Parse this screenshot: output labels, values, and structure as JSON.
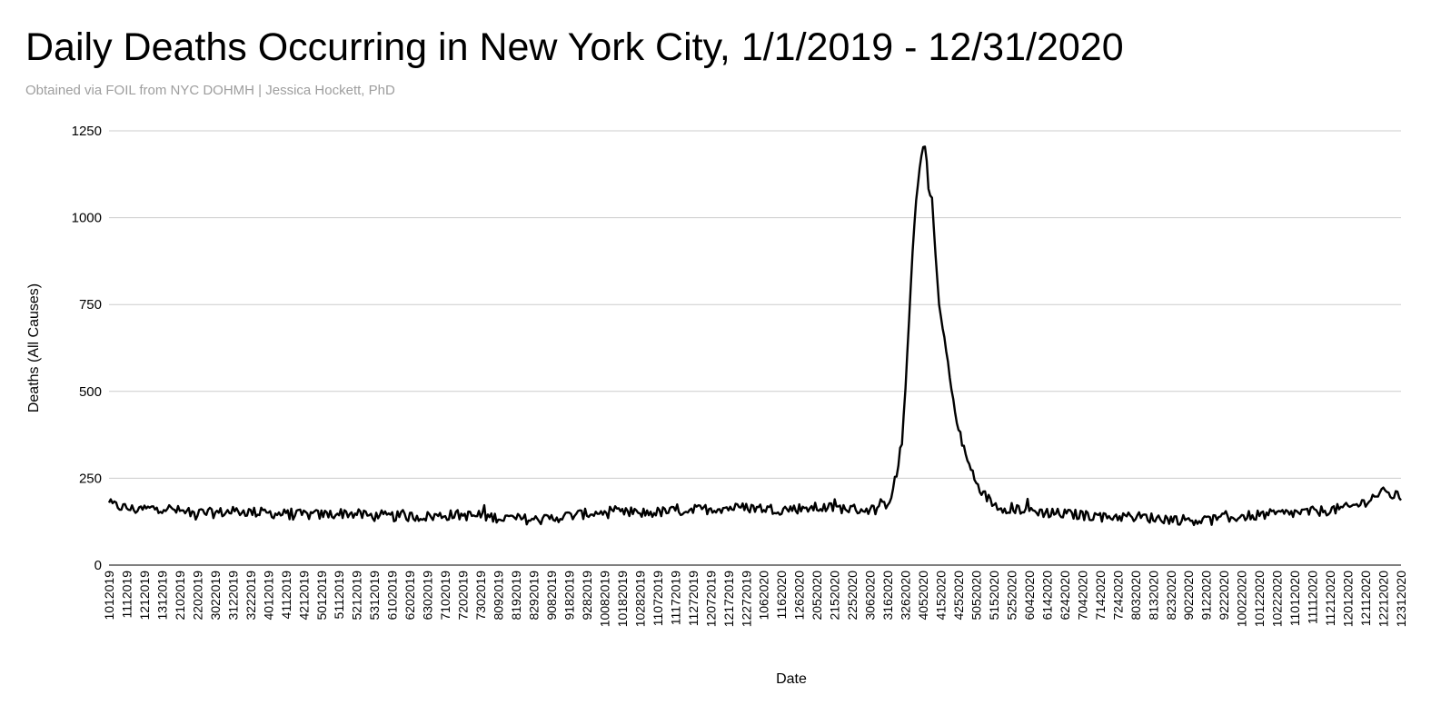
{
  "chart_data": {
    "type": "line",
    "title": "Daily Deaths Occurring in New York City, 1/1/2019 - 12/31/2020",
    "subtitle": "Obtained via FOIL from NYC DOHMH | Jessica Hockett, PhD",
    "xlabel": "Date",
    "ylabel": "Deaths (All Causes)",
    "ylim": [
      0,
      1250
    ],
    "yticks": [
      0,
      250,
      500,
      750,
      1000,
      1250
    ],
    "grid": true,
    "legend": "none",
    "line_color": "#000000",
    "x_range": [
      "2019-01-01",
      "2020-12-31"
    ],
    "x_tick_labels": [
      "1012019",
      "1112019",
      "1212019",
      "1312019",
      "2102019",
      "2202019",
      "3022019",
      "3122019",
      "3222019",
      "4012019",
      "4112019",
      "4212019",
      "5012019",
      "5112019",
      "5212019",
      "5312019",
      "6102019",
      "6202019",
      "6302019",
      "7102019",
      "7202019",
      "7302019",
      "8092019",
      "8192019",
      "8292019",
      "9082019",
      "9182019",
      "9282019",
      "10082019",
      "10182019",
      "10282019",
      "11072019",
      "11172019",
      "11272019",
      "12072019",
      "12172019",
      "12272019",
      "1062020",
      "1162020",
      "1262020",
      "2052020",
      "2152020",
      "2252020",
      "3062020",
      "3162020",
      "3262020",
      "4052020",
      "4152020",
      "4252020",
      "5052020",
      "5152020",
      "5252020",
      "6042020",
      "6142020",
      "6242020",
      "7042020",
      "7142020",
      "7242020",
      "8032020",
      "8132020",
      "8232020",
      "9022020",
      "9122020",
      "9222020",
      "10022020",
      "10122020",
      "10222020",
      "11012020",
      "11112020",
      "11212020",
      "12012020",
      "12112020",
      "12212020",
      "12312020"
    ],
    "series": [
      {
        "x": [
          "2019-01-01",
          "2019-01-15",
          "2019-02-01",
          "2019-02-15",
          "2019-03-01",
          "2019-03-15",
          "2019-04-01",
          "2019-04-15",
          "2019-05-01",
          "2019-05-15",
          "2019-06-01",
          "2019-06-15",
          "2019-07-01",
          "2019-07-15",
          "2019-08-01",
          "2019-08-15",
          "2019-09-01",
          "2019-09-15",
          "2019-10-01",
          "2019-10-15",
          "2019-11-01",
          "2019-11-15",
          "2019-12-01",
          "2019-12-15",
          "2020-01-01",
          "2020-01-15",
          "2020-02-01",
          "2020-02-15",
          "2020-03-01",
          "2020-03-10",
          "2020-03-16",
          "2020-03-20",
          "2020-03-24",
          "2020-03-27",
          "2020-03-30",
          "2020-04-01",
          "2020-04-03",
          "2020-04-05",
          "2020-04-06",
          "2020-04-07",
          "2020-04-08",
          "2020-04-10",
          "2020-04-12",
          "2020-04-14",
          "2020-04-16",
          "2020-04-18",
          "2020-04-20",
          "2020-04-23",
          "2020-04-26",
          "2020-04-30",
          "2020-05-05",
          "2020-05-10",
          "2020-05-15",
          "2020-05-20",
          "2020-06-01",
          "2020-06-15",
          "2020-07-01",
          "2020-07-15",
          "2020-08-01",
          "2020-08-15",
          "2020-09-01",
          "2020-09-15",
          "2020-10-01",
          "2020-10-15",
          "2020-11-01",
          "2020-11-15",
          "2020-12-01",
          "2020-12-10",
          "2020-12-20",
          "2020-12-31"
        ],
        "y": [
          175,
          160,
          165,
          150,
          150,
          155,
          150,
          145,
          145,
          150,
          140,
          140,
          140,
          145,
          140,
          135,
          130,
          140,
          150,
          150,
          150,
          155,
          160,
          165,
          165,
          160,
          165,
          165,
          160,
          160,
          180,
          230,
          350,
          600,
          900,
          1050,
          1150,
          1200,
          1205,
          1160,
          1080,
          1050,
          900,
          750,
          680,
          620,
          540,
          440,
          370,
          300,
          240,
          200,
          175,
          165,
          160,
          150,
          145,
          140,
          140,
          135,
          130,
          130,
          140,
          145,
          150,
          155,
          165,
          180,
          210,
          195
        ],
        "noise_amplitude": 30
      }
    ]
  }
}
